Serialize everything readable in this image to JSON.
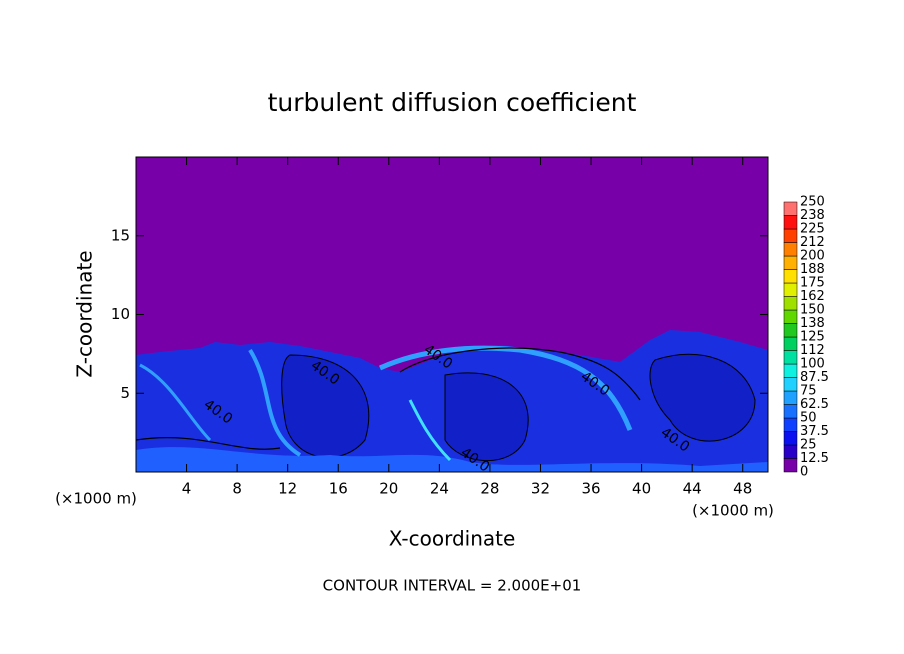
{
  "chart_data": {
    "type": "heatmap",
    "title": "turbulent diffusion coefficient",
    "xlabel": "X-coordinate",
    "ylabel": "Z-coordinate",
    "x_unit": "(×1000 m)",
    "x_unit_right": "(×1000 m)",
    "annotation": "CONTOUR INTERVAL = 2.000E+01",
    "xlim": [
      0,
      50
    ],
    "ylim": [
      0,
      20
    ],
    "xticks": [
      4,
      8,
      12,
      16,
      20,
      24,
      28,
      32,
      36,
      40,
      44,
      48
    ],
    "yticks": [
      5,
      10,
      15
    ],
    "contour_labels": [
      {
        "value": 40,
        "label": "40.0"
      },
      {
        "value": 40,
        "label": "40.0"
      },
      {
        "value": 40,
        "label": "40.0"
      },
      {
        "value": 40,
        "label": "40.0"
      },
      {
        "value": 40,
        "label": "40.0"
      },
      {
        "value": 40,
        "label": "40.0"
      }
    ],
    "colorbar": {
      "levels": [
        0,
        12.5,
        25,
        37.5,
        50,
        62.5,
        75,
        87.5,
        100,
        112,
        125,
        138,
        150,
        162,
        175,
        188,
        200,
        212,
        225,
        238,
        250
      ],
      "colors": [
        "#7800a8",
        "#2800c8",
        "#0a10f0",
        "#1040ff",
        "#1870ff",
        "#20a0ff",
        "#20d0ff",
        "#10f0e0",
        "#00e0a0",
        "#00d060",
        "#20c820",
        "#60d800",
        "#a0e000",
        "#e0f000",
        "#ffe000",
        "#ffb000",
        "#ff8000",
        "#ff4000",
        "#ff1010",
        "#ff7070"
      ]
    }
  }
}
